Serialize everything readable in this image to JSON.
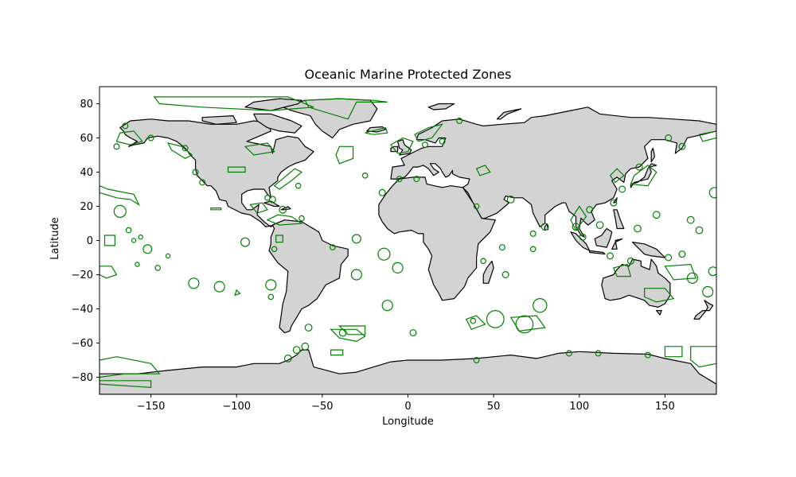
{
  "chart_data": {
    "type": "map",
    "title": "Oceanic Marine Protected Zones",
    "xlabel": "Longitude",
    "ylabel": "Latitude",
    "xlim": [
      -180,
      180
    ],
    "ylim": [
      -90,
      90
    ],
    "x_ticks": [
      -150,
      -100,
      -50,
      0,
      50,
      100,
      150
    ],
    "y_ticks": [
      -80,
      -60,
      -40,
      -20,
      0,
      20,
      40,
      60,
      80
    ],
    "grid": false,
    "land_color": "#d3d3d3",
    "coastline_color": "#000000",
    "zone_color": "#008000",
    "circular_zones": [
      {
        "lon": -168,
        "lat": 17,
        "r": 3.5
      },
      {
        "lon": -163,
        "lat": 6,
        "r": 1.5
      },
      {
        "lon": -160,
        "lat": 0,
        "r": 1.2
      },
      {
        "lon": -158,
        "lat": -14,
        "r": 1.2
      },
      {
        "lon": -156,
        "lat": 2,
        "r": 1.2
      },
      {
        "lon": -152,
        "lat": -5,
        "r": 2.5
      },
      {
        "lon": -146,
        "lat": -16,
        "r": 1.5
      },
      {
        "lon": -140,
        "lat": -9,
        "r": 1.2
      },
      {
        "lon": -125,
        "lat": -25,
        "r": 3
      },
      {
        "lon": -110,
        "lat": -27,
        "r": 3
      },
      {
        "lon": -80,
        "lat": -26,
        "r": 3
      },
      {
        "lon": -30,
        "lat": 1,
        "r": 2.5
      },
      {
        "lon": -14,
        "lat": -8,
        "r": 3.5
      },
      {
        "lon": -6,
        "lat": -16,
        "r": 3
      },
      {
        "lon": -30,
        "lat": -20,
        "r": 3
      },
      {
        "lon": -12,
        "lat": -38,
        "r": 3
      },
      {
        "lon": 3,
        "lat": -54,
        "r": 1.8
      },
      {
        "lon": 38,
        "lat": -47,
        "r": 1.5
      },
      {
        "lon": 51,
        "lat": -46,
        "r": 5
      },
      {
        "lon": 77,
        "lat": -38,
        "r": 4
      },
      {
        "lon": 68,
        "lat": -49,
        "r": 5
      },
      {
        "lon": 94,
        "lat": -66,
        "r": 1.6
      },
      {
        "lon": 111,
        "lat": -66,
        "r": 1.6
      },
      {
        "lon": 140,
        "lat": -67,
        "r": 1.6
      },
      {
        "lon": 40,
        "lat": -70,
        "r": 1.6
      },
      {
        "lon": -73,
        "lat": 18,
        "r": 2
      },
      {
        "lon": -95,
        "lat": -1,
        "r": 2.5
      },
      {
        "lon": -15,
        "lat": 28,
        "r": 1.8
      },
      {
        "lon": 57,
        "lat": -20,
        "r": 1.8
      },
      {
        "lon": 73,
        "lat": -5,
        "r": 1.5
      },
      {
        "lon": 166,
        "lat": -22,
        "r": 3
      },
      {
        "lon": 178,
        "lat": -18,
        "r": 2.5
      },
      {
        "lon": 175,
        "lat": -30,
        "r": 3
      },
      {
        "lon": 170,
        "lat": 6,
        "r": 2
      },
      {
        "lon": 179,
        "lat": 28,
        "r": 3
      },
      {
        "lon": 165,
        "lat": 12,
        "r": 2
      },
      {
        "lon": 145,
        "lat": 15,
        "r": 2
      },
      {
        "lon": 134,
        "lat": 7,
        "r": 2
      },
      {
        "lon": 112,
        "lat": 9,
        "r": 2
      },
      {
        "lon": 98,
        "lat": 8,
        "r": 2
      },
      {
        "lon": 80,
        "lat": 8,
        "r": 2
      },
      {
        "lon": 73,
        "lat": 4,
        "r": 1.6
      },
      {
        "lon": 55,
        "lat": -4,
        "r": 1.6
      },
      {
        "lon": 44,
        "lat": -12,
        "r": 1.5
      },
      {
        "lon": 40,
        "lat": 20,
        "r": 1.5
      },
      {
        "lon": 60,
        "lat": 24,
        "r": 2
      },
      {
        "lon": 5,
        "lat": 36,
        "r": 1.6
      },
      {
        "lon": -5,
        "lat": 36,
        "r": 1.6
      },
      {
        "lon": -25,
        "lat": 38,
        "r": 1.5
      },
      {
        "lon": -64,
        "lat": 32,
        "r": 1.5
      },
      {
        "lon": -79,
        "lat": 24,
        "r": 1.8
      },
      {
        "lon": -82,
        "lat": 25,
        "r": 1.5
      },
      {
        "lon": -62,
        "lat": 13,
        "r": 1.5
      },
      {
        "lon": -58,
        "lat": -51,
        "r": 2
      },
      {
        "lon": -38,
        "lat": -54,
        "r": 2
      },
      {
        "lon": -60,
        "lat": -62,
        "r": 2
      },
      {
        "lon": -65,
        "lat": -64,
        "r": 2
      },
      {
        "lon": -70,
        "lat": -69,
        "r": 2
      },
      {
        "lon": -80,
        "lat": -33,
        "r": 1.5
      },
      {
        "lon": -78,
        "lat": -5,
        "r": 1.5
      },
      {
        "lon": -44,
        "lat": -4,
        "r": 1.5
      },
      {
        "lon": 152,
        "lat": 60,
        "r": 1.8
      },
      {
        "lon": 160,
        "lat": 55,
        "r": 1.8
      },
      {
        "lon": 135,
        "lat": 43,
        "r": 1.8
      },
      {
        "lon": 125,
        "lat": 30,
        "r": 1.8
      },
      {
        "lon": 120,
        "lat": 22,
        "r": 1.8
      },
      {
        "lon": 106,
        "lat": 18,
        "r": 1.8
      },
      {
        "lon": 102,
        "lat": 2,
        "r": 1.8
      },
      {
        "lon": 118,
        "lat": -9,
        "r": 1.8
      },
      {
        "lon": 130,
        "lat": -12,
        "r": 1.8
      },
      {
        "lon": 152,
        "lat": -10,
        "r": 1.8
      },
      {
        "lon": 160,
        "lat": -8,
        "r": 1.8
      },
      {
        "lon": -150,
        "lat": 60,
        "r": 1.6
      },
      {
        "lon": -130,
        "lat": 54,
        "r": 1.6
      },
      {
        "lon": -124,
        "lat": 40,
        "r": 1.6
      },
      {
        "lon": -120,
        "lat": 34,
        "r": 1.6
      },
      {
        "lon": -170,
        "lat": 55,
        "r": 1.6
      },
      {
        "lon": -165,
        "lat": 67,
        "r": 1.6
      },
      {
        "lon": 10,
        "lat": 56,
        "r": 1.6
      },
      {
        "lon": 20,
        "lat": 58,
        "r": 1.6
      },
      {
        "lon": 30,
        "lat": 70,
        "r": 1.6
      }
    ],
    "polygon_zones": [
      [
        [
          -175,
          30
        ],
        [
          -160,
          27
        ],
        [
          -157,
          21
        ],
        [
          -162,
          24
        ],
        [
          -170,
          25
        ],
        [
          -180,
          28
        ],
        [
          -180,
          32
        ]
      ],
      [
        [
          -148,
          84
        ],
        [
          -70,
          84
        ],
        [
          -55,
          78
        ],
        [
          -80,
          76
        ],
        [
          -120,
          78
        ],
        [
          -145,
          80
        ]
      ],
      [
        [
          -60,
          82
        ],
        [
          -40,
          83
        ],
        [
          -20,
          82
        ],
        [
          -12,
          81
        ],
        [
          -30,
          81
        ],
        [
          -35,
          71
        ],
        [
          -58,
          78
        ]
      ],
      [
        [
          -40,
          55
        ],
        [
          -32,
          55
        ],
        [
          -32,
          48
        ],
        [
          -40,
          45
        ],
        [
          -42,
          50
        ]
      ],
      [
        [
          -180,
          -70
        ],
        [
          -170,
          -68
        ],
        [
          -150,
          -72
        ],
        [
          -145,
          -78
        ],
        [
          -165,
          -78
        ],
        [
          -180,
          -80
        ]
      ],
      [
        [
          -180,
          -84
        ],
        [
          -150,
          -86
        ],
        [
          -150,
          -82
        ],
        [
          -180,
          -82
        ]
      ],
      [
        [
          150,
          -62
        ],
        [
          160,
          -62
        ],
        [
          160,
          -68
        ],
        [
          150,
          -68
        ]
      ],
      [
        [
          165,
          -62
        ],
        [
          180,
          -62
        ],
        [
          180,
          -72
        ],
        [
          170,
          -74
        ],
        [
          165,
          -70
        ]
      ],
      [
        [
          -105,
          40
        ],
        [
          -95,
          40
        ],
        [
          -95,
          43
        ],
        [
          -105,
          43
        ]
      ],
      [
        [
          -115,
          19
        ],
        [
          -109,
          19
        ],
        [
          -109,
          18
        ],
        [
          -115,
          18
        ]
      ],
      [
        [
          -77,
          3
        ],
        [
          -73,
          3
        ],
        [
          -73,
          -1
        ],
        [
          -77,
          -1
        ]
      ],
      [
        [
          -177,
          3
        ],
        [
          -171,
          3
        ],
        [
          -171,
          -3
        ],
        [
          -177,
          -3
        ]
      ],
      [
        [
          -180,
          -15
        ],
        [
          -173,
          -15
        ],
        [
          -170,
          -20
        ],
        [
          -176,
          -22
        ],
        [
          -180,
          -20
        ]
      ],
      [
        [
          -45,
          -64
        ],
        [
          -38,
          -64
        ],
        [
          -38,
          -67
        ],
        [
          -45,
          -67
        ]
      ],
      [
        [
          -45,
          -52
        ],
        [
          -40,
          -57
        ],
        [
          -30,
          -59
        ],
        [
          -25,
          -56
        ],
        [
          -30,
          -52
        ]
      ],
      [
        [
          -40,
          -50
        ],
        [
          -25,
          -50
        ],
        [
          -25,
          -55
        ],
        [
          -35,
          -55
        ]
      ],
      [
        [
          34,
          -46
        ],
        [
          40,
          -44
        ],
        [
          45,
          -49
        ],
        [
          37,
          -52
        ]
      ],
      [
        [
          60,
          -45
        ],
        [
          75,
          -44
        ],
        [
          80,
          -51
        ],
        [
          65,
          -53
        ]
      ],
      [
        [
          138,
          -28
        ],
        [
          150,
          -28
        ],
        [
          155,
          -34
        ],
        [
          145,
          -36
        ],
        [
          138,
          -33
        ]
      ],
      [
        [
          150,
          -15
        ],
        [
          165,
          -14
        ],
        [
          168,
          -22
        ],
        [
          155,
          -23
        ]
      ],
      [
        [
          120,
          -16
        ],
        [
          128,
          -14
        ],
        [
          130,
          -21
        ],
        [
          122,
          -21
        ]
      ],
      [
        [
          -100,
          -29
        ],
        [
          -98,
          -31
        ],
        [
          -101,
          -32
        ]
      ],
      [
        [
          130,
          33
        ],
        [
          140,
          32
        ],
        [
          145,
          40
        ],
        [
          140,
          44
        ],
        [
          132,
          38
        ]
      ],
      [
        [
          118,
          38
        ],
        [
          122,
          42
        ],
        [
          126,
          38
        ],
        [
          121,
          34
        ]
      ],
      [
        [
          95,
          12
        ],
        [
          100,
          20
        ],
        [
          104,
          14
        ],
        [
          98,
          6
        ]
      ],
      [
        [
          40,
          42
        ],
        [
          45,
          44
        ],
        [
          48,
          40
        ],
        [
          42,
          38
        ]
      ],
      [
        [
          -10,
          56
        ],
        [
          -3,
          60
        ],
        [
          3,
          58
        ],
        [
          0,
          52
        ],
        [
          -6,
          51
        ]
      ],
      [
        [
          4,
          62
        ],
        [
          12,
          66
        ],
        [
          20,
          68
        ],
        [
          14,
          60
        ],
        [
          6,
          58
        ]
      ],
      [
        [
          -25,
          63
        ],
        [
          -13,
          66
        ],
        [
          -12,
          63
        ],
        [
          -20,
          62
        ]
      ],
      [
        [
          -75,
          30
        ],
        [
          -68,
          35
        ],
        [
          -62,
          40
        ],
        [
          -66,
          42
        ],
        [
          -72,
          37
        ],
        [
          -78,
          32
        ]
      ],
      [
        [
          -92,
          21
        ],
        [
          -85,
          22
        ],
        [
          -82,
          18
        ],
        [
          -88,
          16
        ]
      ],
      [
        [
          -82,
          12
        ],
        [
          -76,
          15
        ],
        [
          -68,
          14
        ],
        [
          -62,
          10
        ],
        [
          -75,
          9
        ]
      ],
      [
        [
          -95,
          55
        ],
        [
          -82,
          57
        ],
        [
          -78,
          52
        ],
        [
          -90,
          50
        ]
      ],
      [
        [
          -140,
          57
        ],
        [
          -132,
          55
        ],
        [
          -126,
          50
        ],
        [
          -130,
          48
        ],
        [
          -138,
          53
        ]
      ],
      [
        [
          -168,
          63
        ],
        [
          -160,
          64
        ],
        [
          -155,
          58
        ],
        [
          -162,
          56
        ],
        [
          -170,
          58
        ]
      ],
      [
        [
          170,
          62
        ],
        [
          180,
          64
        ],
        [
          180,
          60
        ],
        [
          172,
          58
        ]
      ]
    ]
  }
}
